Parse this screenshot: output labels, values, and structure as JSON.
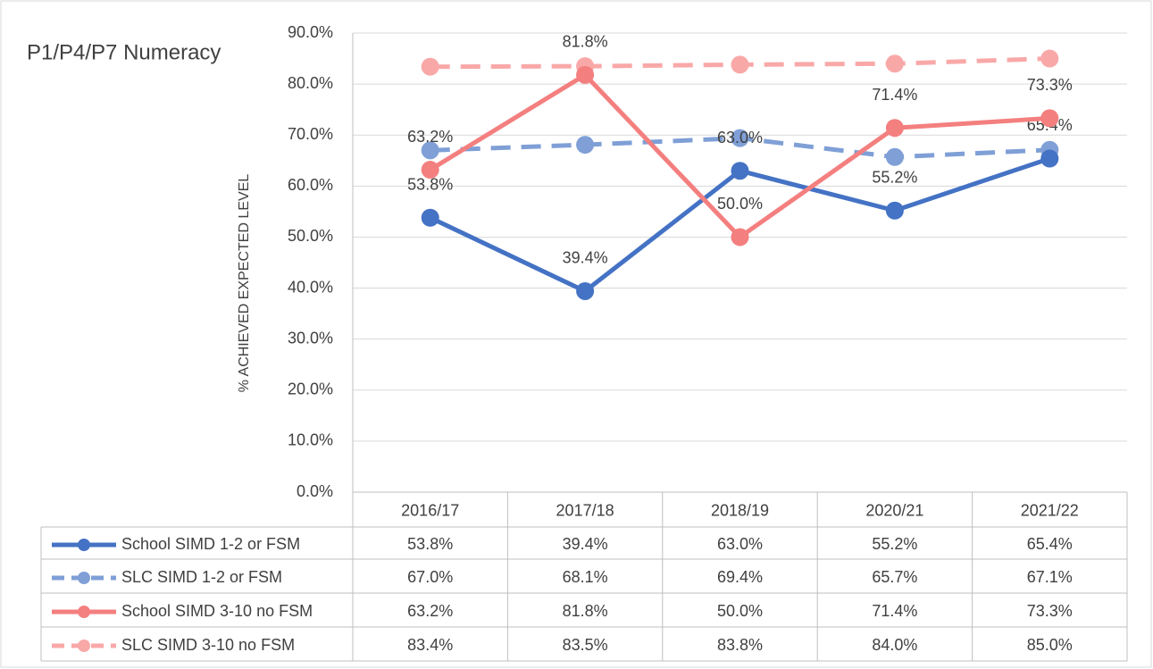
{
  "chart_data": {
    "type": "line",
    "title": "P1/P4/P7  Numeracy",
    "y_label": "% ACHIEVED EXPECTED LEVEL",
    "categories": [
      "2016/17",
      "2017/18",
      "2018/19",
      "2020/21",
      "2021/22"
    ],
    "ylim": [
      0,
      90
    ],
    "yticks": [
      {
        "value": 0,
        "label": "0.0%"
      },
      {
        "value": 10,
        "label": "10.0%"
      },
      {
        "value": 20,
        "label": "20.0%"
      },
      {
        "value": 30,
        "label": "30.0%"
      },
      {
        "value": 40,
        "label": "40.0%"
      },
      {
        "value": 50,
        "label": "50.0%"
      },
      {
        "value": 60,
        "label": "60.0%"
      },
      {
        "value": 70,
        "label": "70.0%"
      },
      {
        "value": 80,
        "label": "80.0%"
      },
      {
        "value": 90,
        "label": "90.0%"
      }
    ],
    "grid": true,
    "data_table": true,
    "series": [
      {
        "name": "School SIMD 1-2 or FSM",
        "color": "#4472c4",
        "dashed": false,
        "data_labels": true,
        "values": [
          53.8,
          39.4,
          63.0,
          55.2,
          65.4
        ],
        "value_labels": [
          "53.8%",
          "39.4%",
          "63.0%",
          "55.2%",
          "65.4%"
        ]
      },
      {
        "name": "SLC SIMD 1-2 or FSM",
        "color": "#7f9fd6",
        "dashed": true,
        "data_labels": false,
        "values": [
          67.0,
          68.1,
          69.4,
          65.7,
          67.1
        ],
        "value_labels": [
          "67.0%",
          "68.1%",
          "69.4%",
          "65.7%",
          "67.1%"
        ]
      },
      {
        "name": "School SIMD 3-10 no FSM",
        "color": "#f47f7f",
        "dashed": false,
        "data_labels": true,
        "values": [
          63.2,
          81.8,
          50.0,
          71.4,
          73.3
        ],
        "value_labels": [
          "63.2%",
          "81.8%",
          "50.0%",
          "71.4%",
          "73.3%"
        ]
      },
      {
        "name": "SLC SIMD 3-10 no FSM",
        "color": "#f9a8a8",
        "dashed": true,
        "data_labels": false,
        "values": [
          83.4,
          83.5,
          83.8,
          84.0,
          85.0
        ],
        "value_labels": [
          "83.4%",
          "83.5%",
          "83.8%",
          "84.0%",
          "85.0%"
        ]
      }
    ]
  }
}
